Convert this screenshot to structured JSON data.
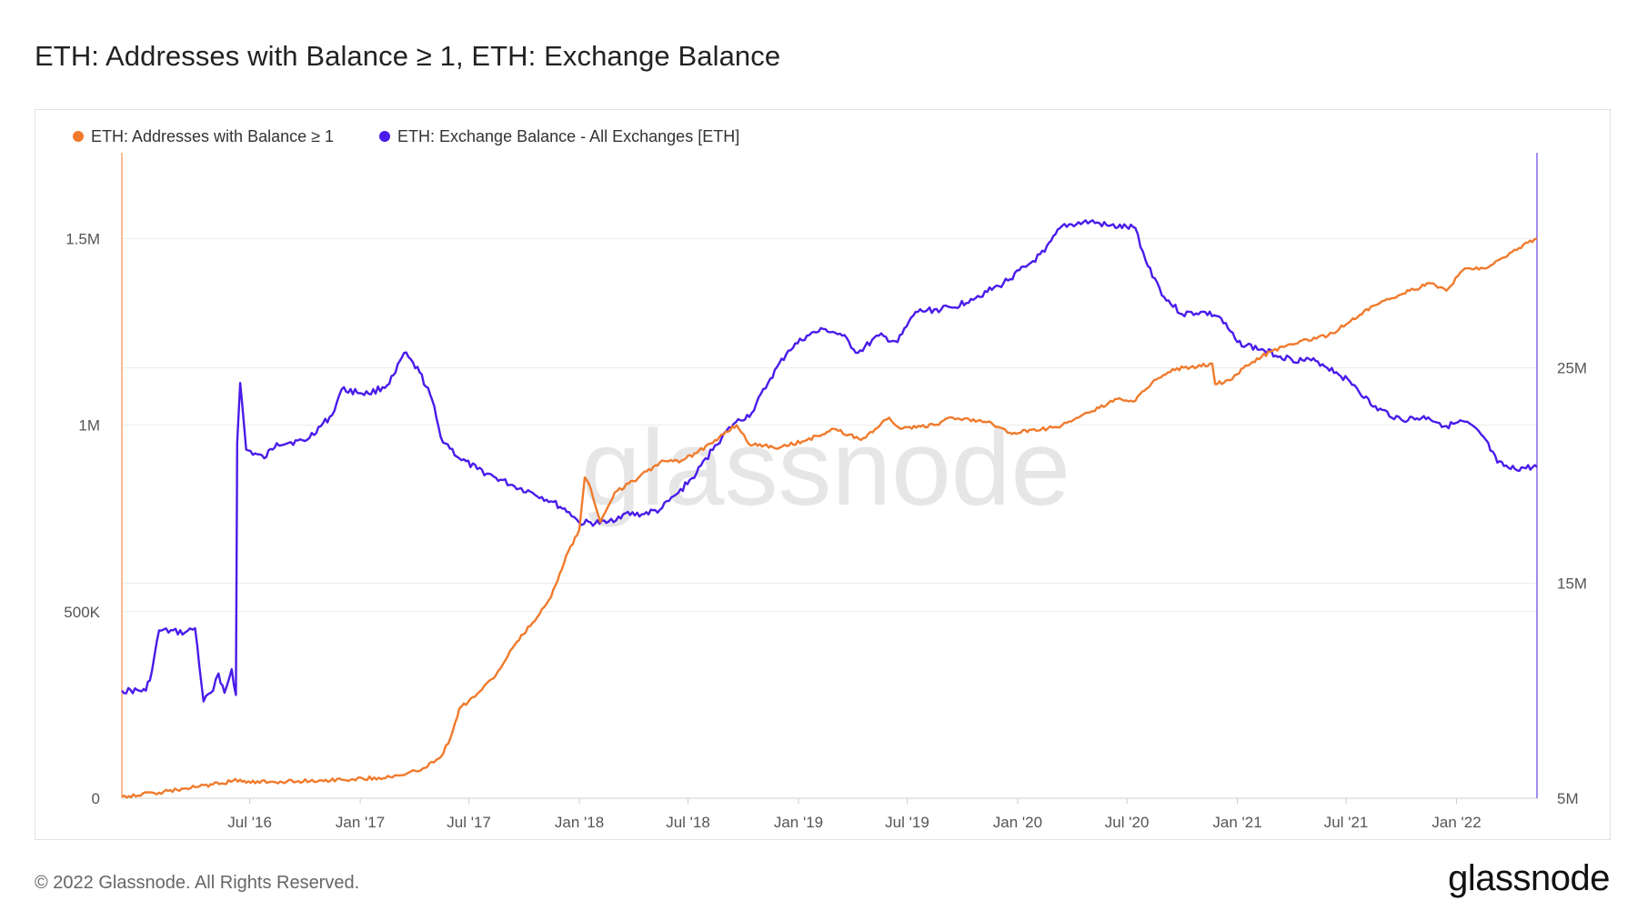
{
  "page": {
    "title": "ETH: Addresses with Balance ≥ 1, ETH: Exchange Balance",
    "copyright": "© 2022 Glassnode. All Rights Reserved.",
    "logo_text": "glassnode",
    "watermark": "glassnode"
  },
  "colors": {
    "addresses": "#f07a2c",
    "exchange": "#4a1bea",
    "grid": "#ececec",
    "axis_text": "#555555"
  },
  "chart_data": {
    "type": "line",
    "legend_placement": "top-left",
    "grid": true,
    "x_ticks": [
      "Jul '16",
      "Jan '17",
      "Jul '17",
      "Jan '18",
      "Jul '18",
      "Jan '19",
      "Jul '19",
      "Jan '20",
      "Jul '20",
      "Jan '21",
      "Jul '21",
      "Jan '22"
    ],
    "x_tick_dates": [
      "2016-07-01",
      "2017-01-01",
      "2017-07-01",
      "2018-01-01",
      "2018-07-01",
      "2019-01-01",
      "2019-07-01",
      "2020-01-01",
      "2020-07-01",
      "2021-01-01",
      "2021-07-01",
      "2022-01-01"
    ],
    "x_range": [
      "2015-12-01",
      "2022-05-15"
    ],
    "y_left": {
      "ticks": [
        "0",
        "500K",
        "1M",
        "1.5M"
      ],
      "tick_values": [
        0,
        500000,
        1000000,
        1500000
      ],
      "range": [
        0,
        1730000
      ]
    },
    "y_right": {
      "ticks": [
        "5M",
        "15M",
        "25M"
      ],
      "tick_values": [
        5000000,
        15000000,
        25000000
      ],
      "range": [
        5000000,
        35000000
      ]
    },
    "series": [
      {
        "name": "ETH: Addresses with Balance ≥ 1",
        "axis": "left",
        "points": [
          [
            "2015-12-01",
            5000
          ],
          [
            "2016-02-01",
            15000
          ],
          [
            "2016-04-01",
            30000
          ],
          [
            "2016-05-15",
            40000
          ],
          [
            "2016-06-15",
            50000
          ],
          [
            "2016-06-25",
            42000
          ],
          [
            "2016-09-01",
            45000
          ],
          [
            "2016-12-01",
            50000
          ],
          [
            "2017-02-01",
            55000
          ],
          [
            "2017-03-15",
            62000
          ],
          [
            "2017-04-15",
            80000
          ],
          [
            "2017-05-15",
            110000
          ],
          [
            "2017-06-01",
            165000
          ],
          [
            "2017-06-15",
            240000
          ],
          [
            "2017-07-15",
            280000
          ],
          [
            "2017-08-15",
            330000
          ],
          [
            "2017-09-15",
            410000
          ],
          [
            "2017-10-15",
            470000
          ],
          [
            "2017-11-15",
            540000
          ],
          [
            "2017-12-10",
            650000
          ],
          [
            "2018-01-01",
            720000
          ],
          [
            "2018-01-10",
            860000
          ],
          [
            "2018-01-20",
            830000
          ],
          [
            "2018-02-05",
            740000
          ],
          [
            "2018-03-01",
            820000
          ],
          [
            "2018-04-01",
            850000
          ],
          [
            "2018-05-15",
            900000
          ],
          [
            "2018-06-20",
            905000
          ],
          [
            "2018-07-15",
            925000
          ],
          [
            "2018-08-15",
            960000
          ],
          [
            "2018-09-20",
            1000000
          ],
          [
            "2018-10-10",
            950000
          ],
          [
            "2018-12-01",
            940000
          ],
          [
            "2019-01-15",
            960000
          ],
          [
            "2019-03-01",
            990000
          ],
          [
            "2019-04-15",
            960000
          ],
          [
            "2019-06-01",
            1020000
          ],
          [
            "2019-06-20",
            990000
          ],
          [
            "2019-08-15",
            1000000
          ],
          [
            "2019-09-15",
            1020000
          ],
          [
            "2019-11-15",
            1010000
          ],
          [
            "2019-12-15",
            980000
          ],
          [
            "2020-02-01",
            985000
          ],
          [
            "2020-03-15",
            1000000
          ],
          [
            "2020-05-01",
            1035000
          ],
          [
            "2020-06-15",
            1070000
          ],
          [
            "2020-07-15",
            1065000
          ],
          [
            "2020-08-15",
            1120000
          ],
          [
            "2020-09-15",
            1150000
          ],
          [
            "2020-10-15",
            1155000
          ],
          [
            "2020-11-20",
            1165000
          ],
          [
            "2020-11-25",
            1110000
          ],
          [
            "2020-12-20",
            1120000
          ],
          [
            "2021-01-15",
            1160000
          ],
          [
            "2021-03-01",
            1200000
          ],
          [
            "2021-04-15",
            1225000
          ],
          [
            "2021-06-01",
            1240000
          ],
          [
            "2021-07-01",
            1270000
          ],
          [
            "2021-08-15",
            1320000
          ],
          [
            "2021-10-15",
            1360000
          ],
          [
            "2021-11-20",
            1380000
          ],
          [
            "2021-12-15",
            1360000
          ],
          [
            "2022-01-15",
            1420000
          ],
          [
            "2022-02-15",
            1420000
          ],
          [
            "2022-03-15",
            1445000
          ],
          [
            "2022-04-15",
            1475000
          ],
          [
            "2022-05-15",
            1500000
          ]
        ]
      },
      {
        "name": "ETH: Exchange Balance - All Exchanges [ETH]",
        "axis": "right",
        "points": [
          [
            "2015-12-01",
            10000000
          ],
          [
            "2016-01-10",
            10000000
          ],
          [
            "2016-01-20",
            10900000
          ],
          [
            "2016-02-01",
            12800000
          ],
          [
            "2016-03-15",
            12700000
          ],
          [
            "2016-04-01",
            12900000
          ],
          [
            "2016-04-15",
            9500000
          ],
          [
            "2016-05-01",
            10000000
          ],
          [
            "2016-05-10",
            10800000
          ],
          [
            "2016-05-20",
            9900000
          ],
          [
            "2016-06-01",
            11000000
          ],
          [
            "2016-06-08",
            9800000
          ],
          [
            "2016-06-10",
            21500000
          ],
          [
            "2016-06-15",
            24300000
          ],
          [
            "2016-06-25",
            21200000
          ],
          [
            "2016-07-25",
            20800000
          ],
          [
            "2016-08-15",
            21500000
          ],
          [
            "2016-10-01",
            21600000
          ],
          [
            "2016-11-15",
            22800000
          ],
          [
            "2016-12-01",
            24000000
          ],
          [
            "2017-01-15",
            23800000
          ],
          [
            "2017-02-15",
            24200000
          ],
          [
            "2017-03-01",
            24800000
          ],
          [
            "2017-03-15",
            25700000
          ],
          [
            "2017-04-10",
            24800000
          ],
          [
            "2017-05-01",
            23500000
          ],
          [
            "2017-05-15",
            21800000
          ],
          [
            "2017-06-15",
            20800000
          ],
          [
            "2017-07-15",
            20300000
          ],
          [
            "2017-08-15",
            19900000
          ],
          [
            "2017-09-15",
            19500000
          ],
          [
            "2017-10-15",
            19200000
          ],
          [
            "2017-11-15",
            18800000
          ],
          [
            "2017-12-15",
            18300000
          ],
          [
            "2018-01-01",
            17800000
          ],
          [
            "2018-02-15",
            17800000
          ],
          [
            "2018-03-15",
            18200000
          ],
          [
            "2018-04-15",
            18200000
          ],
          [
            "2018-05-15",
            18400000
          ],
          [
            "2018-06-15",
            19200000
          ],
          [
            "2018-07-15",
            20100000
          ],
          [
            "2018-08-15",
            21400000
          ],
          [
            "2018-09-15",
            22400000
          ],
          [
            "2018-10-15",
            22900000
          ],
          [
            "2018-11-15",
            24500000
          ],
          [
            "2018-12-15",
            25800000
          ],
          [
            "2019-01-15",
            26500000
          ],
          [
            "2019-02-15",
            26800000
          ],
          [
            "2019-03-15",
            26500000
          ],
          [
            "2019-04-10",
            25700000
          ],
          [
            "2019-05-15",
            26500000
          ],
          [
            "2019-06-15",
            26200000
          ],
          [
            "2019-07-15",
            27600000
          ],
          [
            "2019-09-15",
            27800000
          ],
          [
            "2019-10-15",
            28200000
          ],
          [
            "2019-12-01",
            28800000
          ],
          [
            "2020-01-15",
            29700000
          ],
          [
            "2020-02-15",
            30400000
          ],
          [
            "2020-03-15",
            31600000
          ],
          [
            "2020-05-01",
            31800000
          ],
          [
            "2020-06-01",
            31600000
          ],
          [
            "2020-07-15",
            31500000
          ],
          [
            "2020-08-01",
            30000000
          ],
          [
            "2020-09-01",
            28300000
          ],
          [
            "2020-10-01",
            27500000
          ],
          [
            "2020-11-01",
            27600000
          ],
          [
            "2020-12-01",
            27400000
          ],
          [
            "2021-01-01",
            26200000
          ],
          [
            "2021-02-15",
            25800000
          ],
          [
            "2021-04-01",
            25400000
          ],
          [
            "2021-05-15",
            25300000
          ],
          [
            "2021-06-15",
            24800000
          ],
          [
            "2021-07-15",
            24200000
          ],
          [
            "2021-08-15",
            23200000
          ],
          [
            "2021-10-01",
            22600000
          ],
          [
            "2021-11-15",
            22700000
          ],
          [
            "2021-12-15",
            22300000
          ],
          [
            "2022-01-15",
            22500000
          ],
          [
            "2022-02-15",
            21800000
          ],
          [
            "2022-03-10",
            20600000
          ],
          [
            "2022-04-01",
            20300000
          ],
          [
            "2022-05-15",
            20400000
          ]
        ]
      }
    ]
  }
}
